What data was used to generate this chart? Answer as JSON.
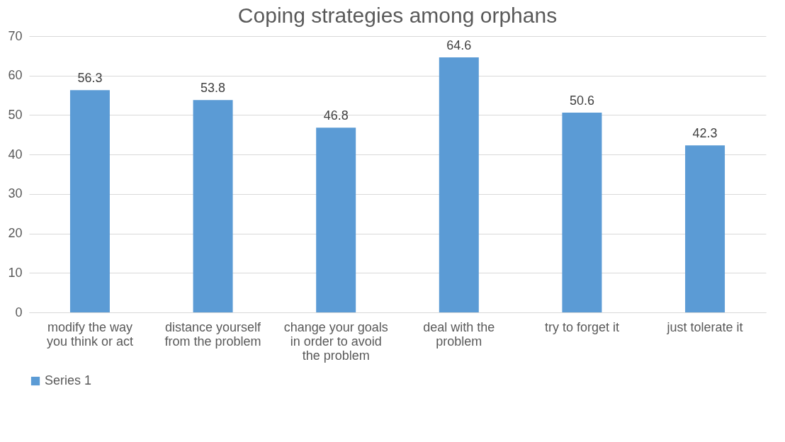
{
  "chart_data": {
    "type": "bar",
    "title": "Coping strategies among orphans",
    "categories": [
      "modify the way you think or act",
      "distance yourself from the problem",
      "change your goals in order to avoid the problem",
      "deal with the problem",
      "try to forget it",
      "just tolerate it"
    ],
    "series": [
      {
        "name": "Series 1",
        "color": "#5b9bd5",
        "values": [
          56.3,
          53.8,
          46.8,
          64.6,
          50.6,
          42.3
        ]
      }
    ],
    "ylim": [
      0,
      70
    ],
    "yticks": [
      0,
      10,
      20,
      30,
      40,
      50,
      60,
      70
    ],
    "grid": "y",
    "legend": "bottom",
    "data_labels": true
  }
}
